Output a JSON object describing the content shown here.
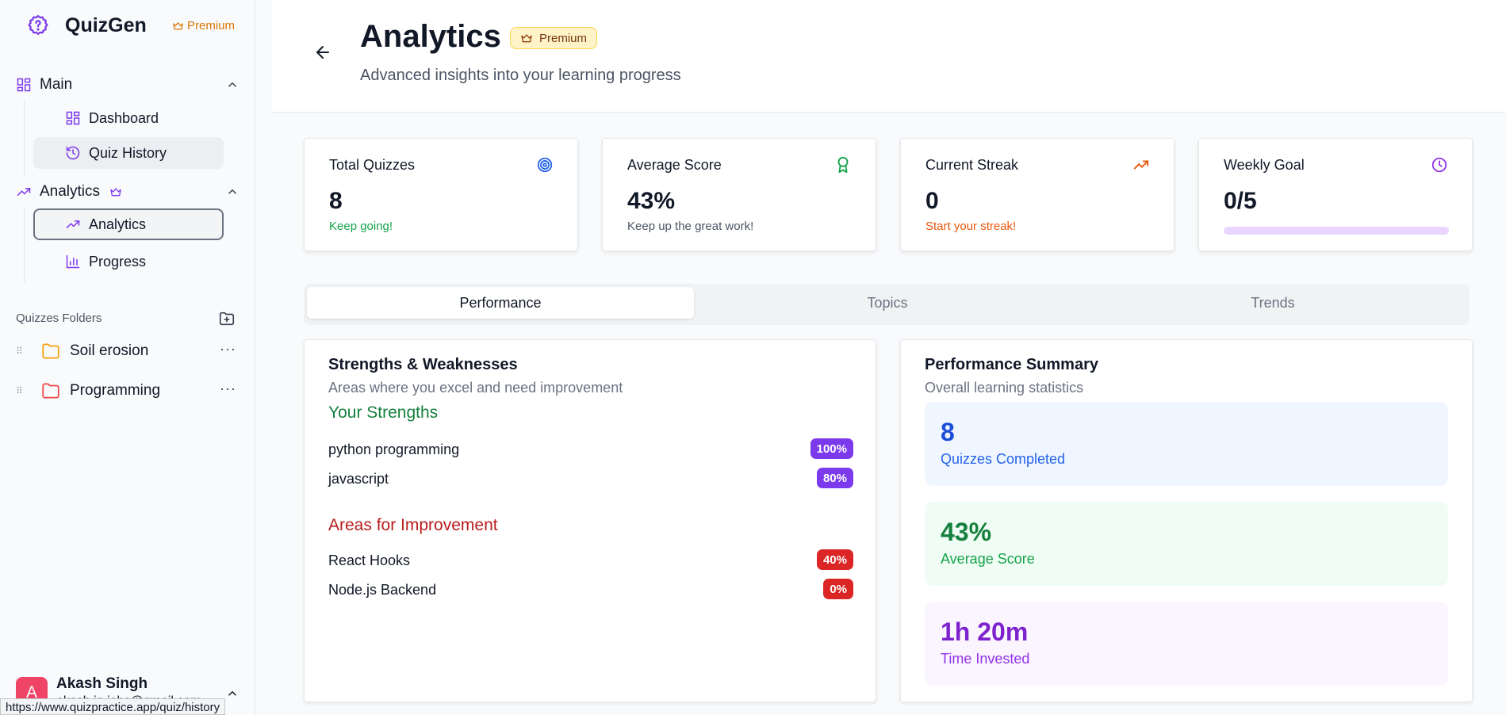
{
  "brand": {
    "name": "QuizGen",
    "premium_label": "Premium",
    "accent": "#7c3aed"
  },
  "sidebar": {
    "main_group": {
      "label": "Main",
      "items": [
        {
          "label": "Dashboard"
        },
        {
          "label": "Quiz History"
        }
      ]
    },
    "analytics_group": {
      "label": "Analytics",
      "items": [
        {
          "label": "Analytics"
        },
        {
          "label": "Progress"
        }
      ]
    },
    "folders_title": "Quizzes Folders",
    "folders": [
      {
        "name": "Soil erosion",
        "color": "#f59e0b"
      },
      {
        "name": "Programming",
        "color": "#ef4444"
      }
    ],
    "user": {
      "initial": "A",
      "name": "Akash Singh",
      "email": "akash.in.jobs@gmail.com"
    }
  },
  "status_url": "https://www.quizpractice.app/quiz/history",
  "header": {
    "title": "Analytics",
    "badge": "Premium",
    "subtitle": "Advanced insights into your learning progress"
  },
  "stats": [
    {
      "title": "Total Quizzes",
      "value": "8",
      "sub": "Keep going!",
      "sub_color": "#16a34a",
      "icon": "target-icon"
    },
    {
      "title": "Average Score",
      "value": "43%",
      "sub": "Keep up the great work!",
      "sub_color": "#4b5563",
      "icon": "award-icon"
    },
    {
      "title": "Current Streak",
      "value": "0",
      "sub": "Start your streak!",
      "sub_color": "#ea580c",
      "icon": "trending-up-icon"
    },
    {
      "title": "Weekly Goal",
      "value": "0/5",
      "progress": 0,
      "icon": "clock-icon"
    }
  ],
  "tabs": [
    {
      "label": "Performance"
    },
    {
      "label": "Topics"
    },
    {
      "label": "Trends"
    }
  ],
  "strengths_panel": {
    "title": "Strengths & Weaknesses",
    "subtitle": "Areas where you excel and need improvement",
    "strengths_title": "Your Strengths",
    "strengths": [
      {
        "name": "python programming",
        "pct": "100%"
      },
      {
        "name": "javascript",
        "pct": "80%"
      }
    ],
    "improve_title": "Areas for Improvement",
    "improvements": [
      {
        "name": "React Hooks",
        "pct": "40%"
      },
      {
        "name": "Node.js Backend",
        "pct": "0%"
      }
    ]
  },
  "summary_panel": {
    "title": "Performance Summary",
    "subtitle": "Overall learning statistics",
    "boxes": [
      {
        "value": "8",
        "label": "Quizzes Completed"
      },
      {
        "value": "43%",
        "label": "Average Score"
      },
      {
        "value": "1h 20m",
        "label": "Time Invested"
      }
    ]
  }
}
